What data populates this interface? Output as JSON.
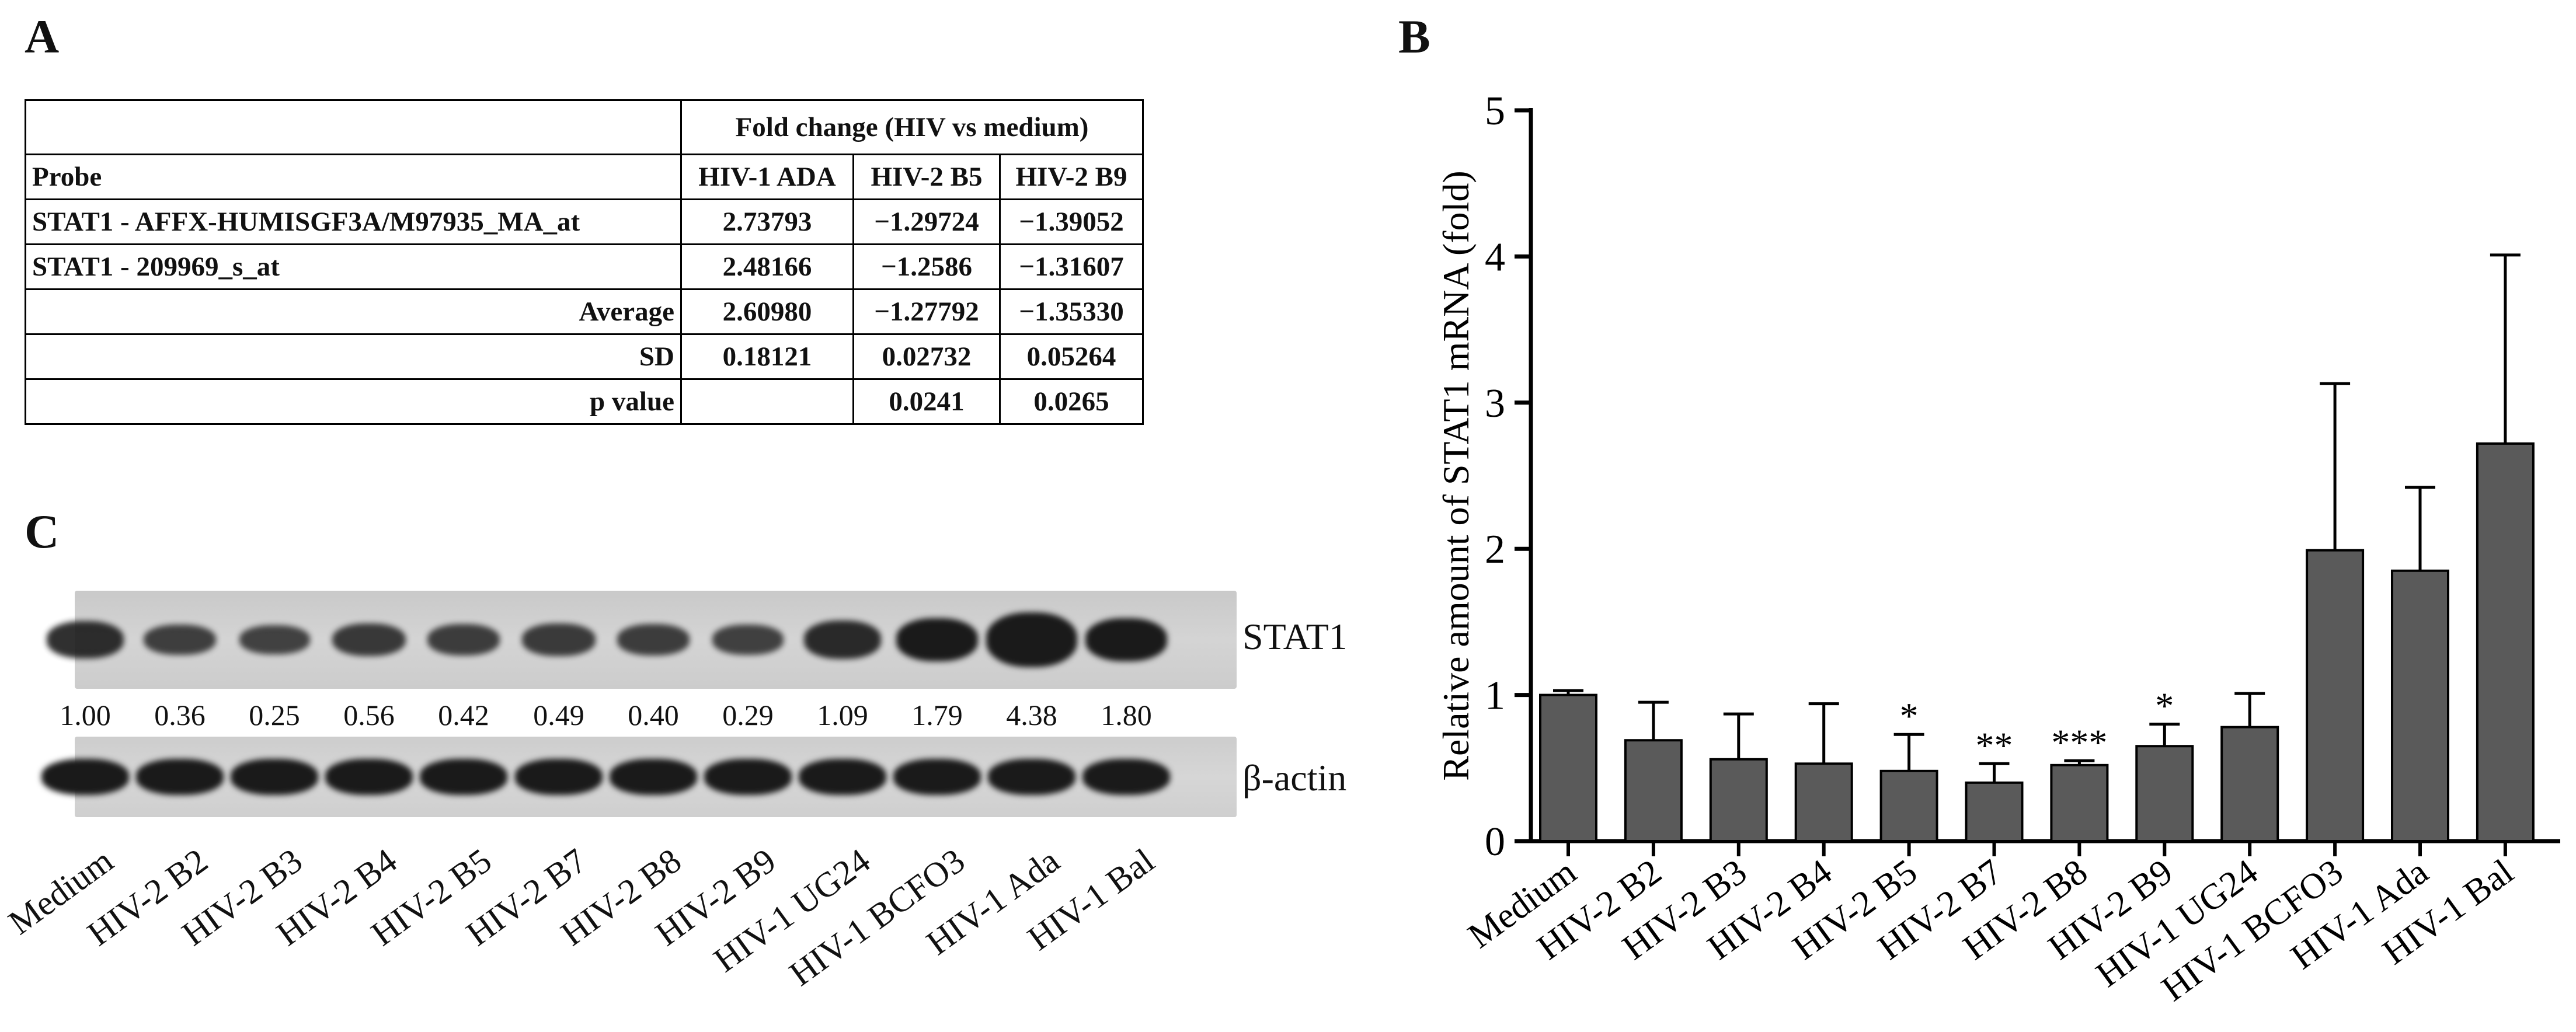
{
  "panel_labels": {
    "a": "A",
    "b": "B",
    "c": "C"
  },
  "table_a": {
    "header_group": "Fold change (HIV vs medium)",
    "col_probe": "Probe",
    "columns": [
      "HIV-1 ADA",
      "HIV-2 B5",
      "HIV-2 B9"
    ],
    "rows": [
      {
        "label": "STAT1 - AFFX-HUMISGF3A/M97935_MA_at",
        "v": [
          "2.73793",
          "−1.29724",
          "−1.39052"
        ]
      },
      {
        "label": "STAT1 - 209969_s_at",
        "v": [
          "2.48166",
          "−1.2586",
          "−1.31607"
        ]
      },
      {
        "label": "Average",
        "v": [
          "2.60980",
          "−1.27792",
          "−1.35330"
        ]
      },
      {
        "label": "SD",
        "v": [
          "0.18121",
          "0.02732",
          "0.05264"
        ]
      },
      {
        "label": "p value",
        "v": [
          "",
          "0.0241",
          "0.0265"
        ]
      }
    ]
  },
  "blot": {
    "stat1_label": "STAT1",
    "actin_label": "β-actin",
    "densities": [
      "1.00",
      "0.36",
      "0.25",
      "0.56",
      "0.42",
      "0.49",
      "0.40",
      "0.29",
      "1.09",
      "1.79",
      "4.38",
      "1.80"
    ],
    "lanes": [
      "Medium",
      "HIV-2 B2",
      "HIV-2 B3",
      "HIV-2 B4",
      "HIV-2 B5",
      "HIV-2 B7",
      "HIV-2 B8",
      "HIV-2 B9",
      "HIV-1 UG24",
      "HIV-1 BCFO3",
      "HIV-1 Ada",
      "HIV-1 Bal"
    ]
  },
  "chart_data": {
    "type": "bar",
    "title": "",
    "xlabel": "",
    "ylabel": "Relative amount of STAT1 mRNA (fold)",
    "categories": [
      "Medium",
      "HIV-2 B2",
      "HIV-2 B3",
      "HIV-2 B4",
      "HIV-2 B5",
      "HIV-2 B7",
      "HIV-2 B8",
      "HIV-2 B9",
      "HIV-1 UG24",
      "HIV-1 BCFO3",
      "HIV-1 Ada",
      "HIV-1 Bal"
    ],
    "values": [
      1.0,
      0.69,
      0.56,
      0.53,
      0.48,
      0.4,
      0.52,
      0.65,
      0.78,
      1.99,
      1.85,
      2.72
    ],
    "errors": [
      0.03,
      0.26,
      0.31,
      0.41,
      0.25,
      0.13,
      0.03,
      0.15,
      0.23,
      1.14,
      0.57,
      1.29
    ],
    "significance": [
      "",
      "",
      "",
      "",
      "*",
      "**",
      "***",
      "*",
      "",
      "",
      "",
      ""
    ],
    "ylim": [
      0,
      5
    ],
    "yticks": [
      0,
      1,
      2,
      3,
      4,
      5
    ],
    "bar_color": "#5a5a5a"
  }
}
